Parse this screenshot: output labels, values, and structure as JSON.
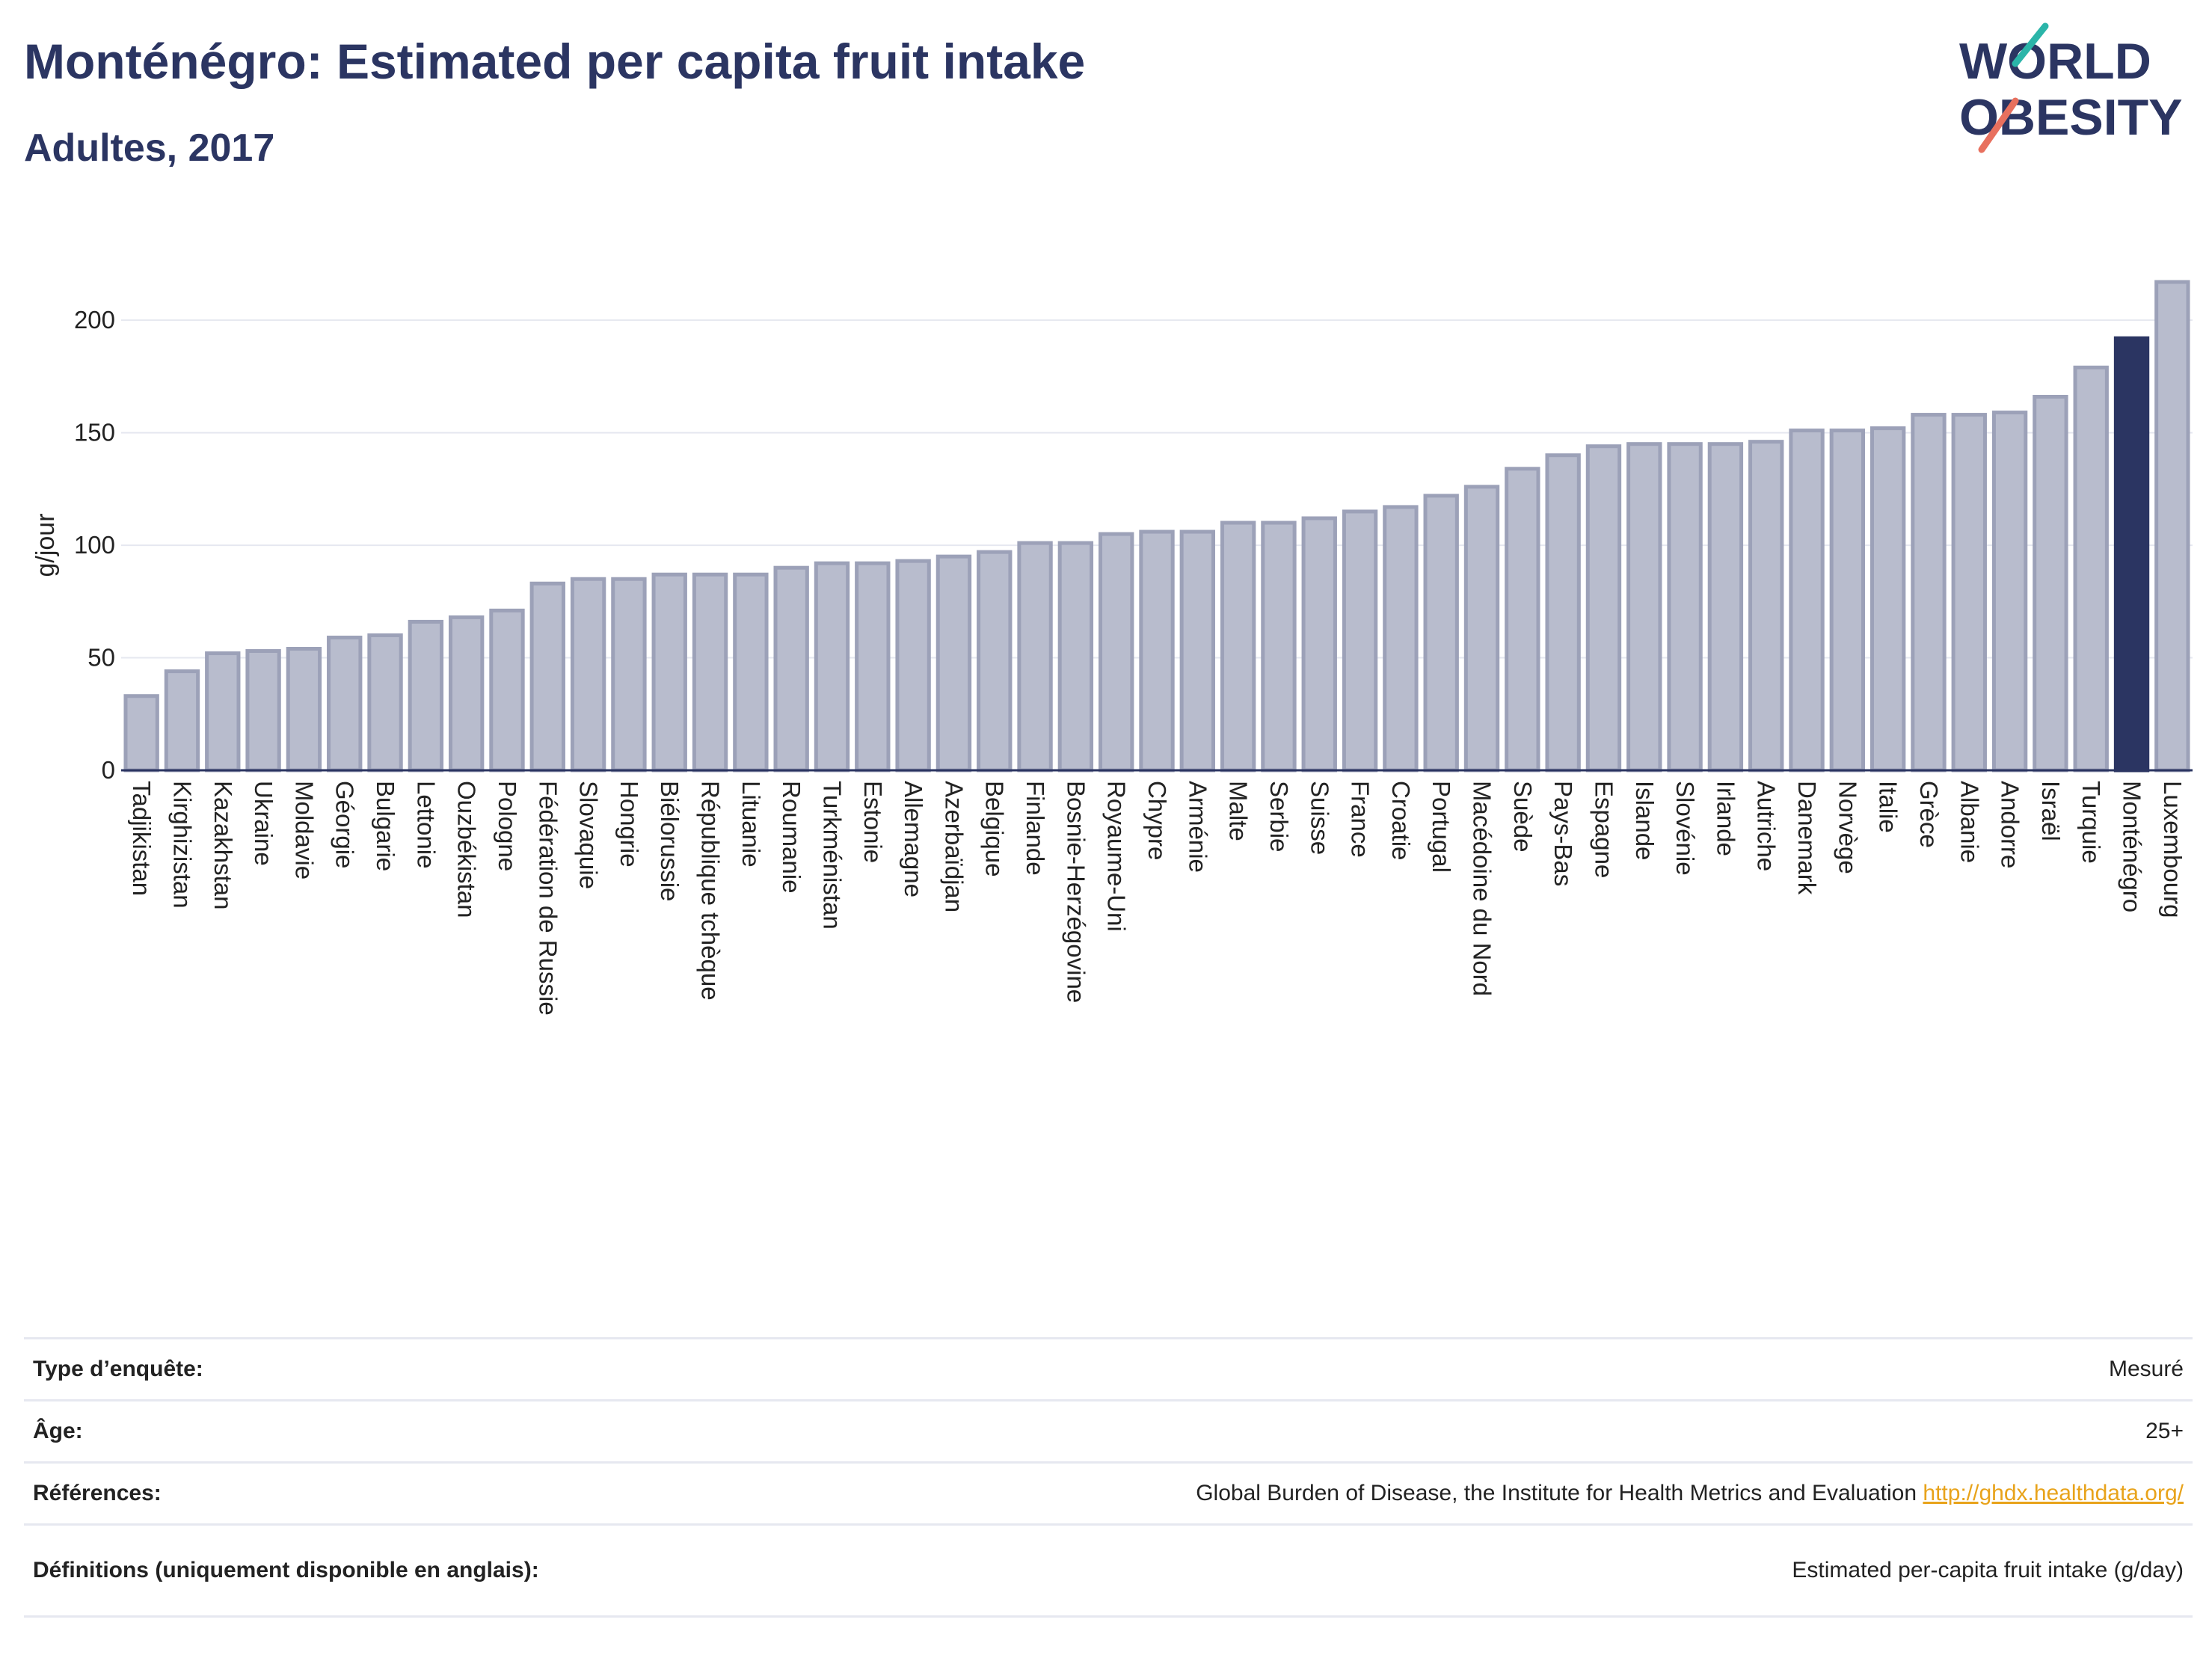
{
  "header": {
    "title": "Monténégro: Estimated per capita fruit intake",
    "subtitle": "Adultes, 2017"
  },
  "logo": {
    "line1": "WORLD",
    "line2": "OBESITY"
  },
  "colors": {
    "title": "#2b3562",
    "bar_default": "#b8bccd",
    "bar_border": "#9ca1b8",
    "bar_highlight": "#2b3562",
    "logo_teal": "#2bb5a9",
    "logo_coral": "#e8705e",
    "link": "#e8a31b"
  },
  "chart_data": {
    "type": "bar",
    "ylabel": "g/jour",
    "xlabel": "",
    "ylim": [
      0,
      220
    ],
    "yticks": [
      0,
      50,
      100,
      150,
      200
    ],
    "grid": true,
    "highlight": "Monténégro",
    "categories": [
      "Tadjikistan",
      "Kirghizistan",
      "Kazakhstan",
      "Ukraine",
      "Moldavie",
      "Géorgie",
      "Bulgarie",
      "Lettonie",
      "Ouzbékistan",
      "Pologne",
      "Fédération de Russie",
      "Slovaquie",
      "Hongrie",
      "Biélorussie",
      "République tchèque",
      "Lituanie",
      "Roumanie",
      "Turkménistan",
      "Estonie",
      "Allemagne",
      "Azerbaïdjan",
      "Belgique",
      "Finlande",
      "Bosnie-Herzégovine",
      "Royaume-Uni",
      "Chypre",
      "Arménie",
      "Malte",
      "Serbie",
      "Suisse",
      "France",
      "Croatie",
      "Portugal",
      "Macédoine du Nord",
      "Suède",
      "Pays-Bas",
      "Espagne",
      "Islande",
      "Slovénie",
      "Irlande",
      "Autriche",
      "Danemark",
      "Norvège",
      "Italie",
      "Grèce",
      "Albanie",
      "Andorre",
      "Israël",
      "Turquie",
      "Monténégro",
      "Luxembourg"
    ],
    "values": [
      33,
      44,
      52,
      53,
      54,
      59,
      60,
      66,
      68,
      71,
      83,
      85,
      85,
      87,
      87,
      87,
      90,
      92,
      92,
      93,
      95,
      97,
      101,
      101,
      105,
      106,
      106,
      110,
      110,
      112,
      115,
      117,
      122,
      126,
      134,
      140,
      144,
      145,
      145,
      145,
      146,
      151,
      151,
      152,
      158,
      158,
      159,
      166,
      179,
      192,
      217
    ]
  },
  "info": {
    "survey_type_label": "Type d’enquête:",
    "survey_type_value": "Mesuré",
    "age_label": "Âge:",
    "age_value": "25+",
    "references_label": "Références:",
    "references_text": "Global Burden of Disease, the Institute for Health Metrics and Evaluation",
    "references_link": "http://ghdx.healthdata.org/",
    "definitions_label": "Définitions (uniquement disponible en anglais):",
    "definitions_value": "Estimated per-capita fruit intake (g/day)"
  }
}
